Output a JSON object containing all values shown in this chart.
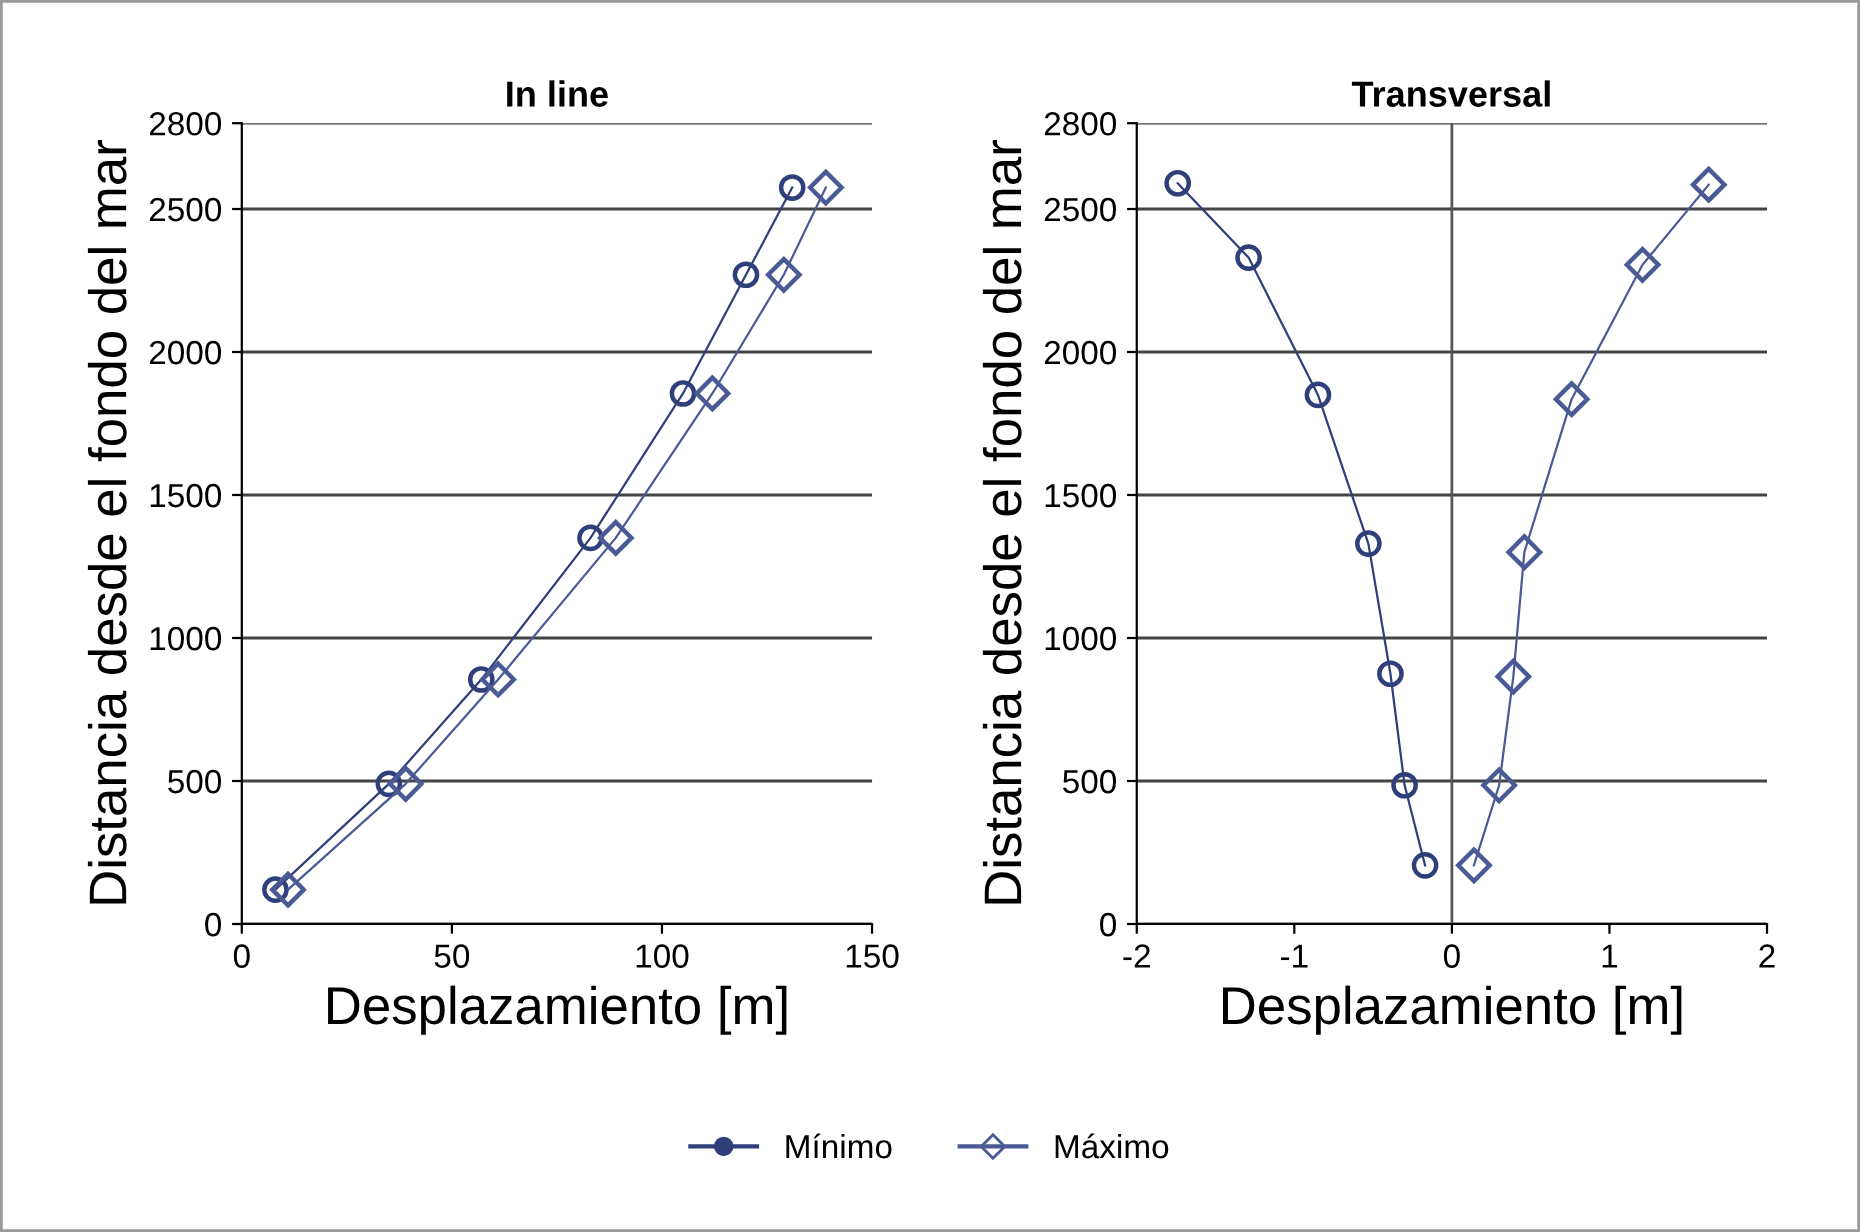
{
  "chart_data": [
    {
      "type": "line",
      "title": "In line",
      "xlabel": "Desplazamiento [m]",
      "ylabel": "Distancia desde el fondo del mar",
      "xlim": [
        0,
        150
      ],
      "xticks": [
        0,
        50,
        100,
        150
      ],
      "ylim": [
        0,
        2800
      ],
      "yticks": [
        0,
        500,
        1000,
        1500,
        2000,
        2500,
        2800
      ],
      "grid": "y",
      "legend": "bottom",
      "series": [
        {
          "name": "Mínimo",
          "color": "#2f3f7a",
          "marker": "circle",
          "x": [
            8,
            35,
            57,
            83,
            105,
            120,
            131
          ],
          "values": [
            120,
            490,
            855,
            1350,
            1855,
            2270,
            2575
          ]
        },
        {
          "name": "Máximo",
          "color": "#4a5a95",
          "marker": "diamond",
          "x": [
            11,
            39,
            61,
            89,
            112,
            129,
            139
          ],
          "values": [
            120,
            490,
            855,
            1350,
            1855,
            2270,
            2575
          ]
        }
      ]
    },
    {
      "type": "line",
      "title": "Transversal",
      "xlabel": "Desplazamiento [m]",
      "ylabel": "Distancia desde el fondo del mar",
      "xlim": [
        -2,
        2
      ],
      "xticks": [
        -2,
        -1,
        0,
        1,
        2
      ],
      "ylim": [
        0,
        2800
      ],
      "yticks": [
        0,
        500,
        1000,
        1500,
        2000,
        2500,
        2800
      ],
      "grid": "y",
      "ref_lines": [
        {
          "axis": "x",
          "value": 0
        }
      ],
      "series": [
        {
          "name": "Mínimo",
          "color": "#2f3f7a",
          "marker": "circle",
          "x": [
            -1.74,
            -1.29,
            -0.85,
            -0.53,
            -0.39,
            -0.3,
            -0.17
          ],
          "values": [
            2590,
            2330,
            1850,
            1330,
            875,
            485,
            205
          ]
        },
        {
          "name": "Máximo",
          "color": "#4a5a95",
          "marker": "diamond",
          "x": [
            0.14,
            0.3,
            0.39,
            0.46,
            0.76,
            1.21,
            1.63
          ],
          "values": [
            205,
            485,
            865,
            1300,
            1835,
            2305,
            2585
          ]
        }
      ]
    }
  ]
}
